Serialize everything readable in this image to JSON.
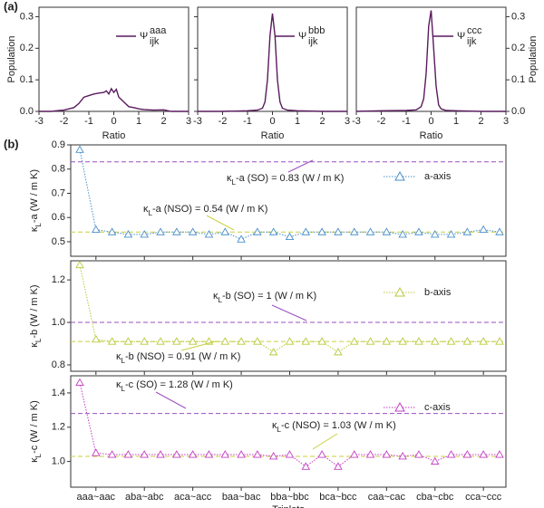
{
  "panel_labels": [
    "(a)",
    "(b)"
  ],
  "chart_data": [
    {
      "type": "line",
      "x": [
        -3,
        -2.5,
        -2.3,
        -2,
        -1.8,
        -1.6,
        -1.4,
        -1.2,
        -1,
        -0.8,
        -0.6,
        -0.4,
        -0.3,
        -0.2,
        -0.1,
        0,
        0.1,
        0.2,
        0.4,
        0.6,
        0.8,
        1,
        1.2,
        1.4,
        1.6,
        2,
        2.3,
        3
      ],
      "series": [
        {
          "name": {
            "symbol": "Ψ",
            "sup": "aaa",
            "sub": "ijk"
          },
          "color": "#5a1a5e",
          "values": [
            0,
            0,
            0.002,
            0.004,
            0.008,
            0.012,
            0.025,
            0.045,
            0.05,
            0.055,
            0.058,
            0.06,
            0.065,
            0.055,
            0.072,
            0.06,
            0.07,
            0.045,
            0.03,
            0.015,
            0.012,
            0.008,
            0.006,
            0.005,
            0.004,
            0.005,
            0,
            0
          ]
        }
      ],
      "xlim": [
        -3,
        3
      ],
      "xticks": [
        -3,
        -2,
        -1,
        0,
        1,
        2,
        3
      ],
      "xlabel": "Ratio",
      "ylim": [
        0,
        0.33
      ],
      "yticks": [
        {
          "value": 0,
          "label": "0.0"
        },
        0.1,
        0.2,
        0.3
      ],
      "ylabel": "Population",
      "yaxis_side": "left"
    },
    {
      "type": "line",
      "x": [
        -3,
        -2,
        -1,
        -0.6,
        -0.4,
        -0.3,
        -0.2,
        -0.1,
        0,
        0.1,
        0.2,
        0.3,
        0.4,
        0.6,
        1,
        2,
        3
      ],
      "series": [
        {
          "name": {
            "symbol": "Ψ",
            "sup": "bbb",
            "sub": "ijk"
          },
          "color": "#5a1a5e",
          "values": [
            0,
            0,
            0.002,
            0.004,
            0.01,
            0.03,
            0.1,
            0.24,
            0.31,
            0.24,
            0.1,
            0.03,
            0.01,
            0.004,
            0.002,
            0,
            0
          ]
        }
      ],
      "xlim": [
        -3,
        3
      ],
      "xticks": [
        -3,
        -2,
        -1,
        0,
        1,
        2,
        3
      ],
      "xlabel": "Ratio",
      "ylim": [
        0,
        0.33
      ],
      "yticks": [
        0,
        0.1,
        0.2,
        0.3
      ]
    },
    {
      "type": "line",
      "x": [
        -3,
        -2,
        -1,
        -0.6,
        -0.4,
        -0.3,
        -0.2,
        -0.1,
        0,
        0.1,
        0.2,
        0.3,
        0.4,
        0.6,
        1,
        2,
        3
      ],
      "series": [
        {
          "name": {
            "symbol": "Ψ",
            "sup": "ccc",
            "sub": "ijk"
          },
          "color": "#5a1a5e",
          "values": [
            0,
            0.002,
            0.003,
            0.005,
            0.015,
            0.04,
            0.12,
            0.27,
            0.32,
            0.2,
            0.08,
            0.02,
            0.008,
            0.003,
            0.002,
            0,
            0
          ]
        }
      ],
      "xlim": [
        -3,
        3
      ],
      "xticks": [
        -3,
        -2,
        -1,
        0,
        1,
        2,
        3
      ],
      "xlabel": "Ratio",
      "ylim": [
        0,
        0.33
      ],
      "yticks": [
        {
          "value": 0,
          "label": "0.0"
        },
        0.1,
        0.2,
        0.3
      ],
      "ylabel": "Population",
      "yaxis_side": "right"
    },
    {
      "type": "marker-line",
      "series": [
        {
          "name": "a-axis",
          "color": "#4a8fc9",
          "values": [
            0.88,
            0.55,
            0.54,
            0.53,
            0.53,
            0.54,
            0.54,
            0.54,
            0.53,
            0.54,
            0.51,
            0.54,
            0.54,
            0.52,
            0.54,
            0.54,
            0.54,
            0.54,
            0.54,
            0.54,
            0.53,
            0.54,
            0.53,
            0.53,
            0.54,
            0.55,
            0.54
          ]
        }
      ],
      "ylim": [
        0.44,
        0.9
      ],
      "yticks": [
        0.5,
        0.6,
        0.7,
        0.8,
        0.9
      ],
      "yaxis_side": "left",
      "ylabel": {
        "prefix": "κ",
        "sub": "L",
        "text": "-a (W / m K)"
      },
      "hlines": [
        {
          "value": 0.83,
          "color": "#9b4fc0"
        },
        {
          "value": 0.54,
          "color": "#c9cf3c"
        }
      ],
      "annotations": [
        {
          "prefix": "κ",
          "sub": "L",
          "text": "-a (SO) = 0.83 (W / m K)"
        },
        {
          "prefix": "κ",
          "sub": "L",
          "text": "-a (NSO) = 0.54 (W / m K)"
        }
      ]
    },
    {
      "type": "marker-line",
      "series": [
        {
          "name": "b-axis",
          "color": "#b9c93a",
          "values": [
            1.27,
            0.92,
            0.91,
            0.91,
            0.91,
            0.91,
            0.91,
            0.91,
            0.91,
            0.91,
            0.91,
            0.91,
            0.86,
            0.91,
            0.91,
            0.91,
            0.86,
            0.91,
            0.91,
            0.91,
            0.91,
            0.91,
            0.91,
            0.91,
            0.91,
            0.91,
            0.91
          ]
        }
      ],
      "ylim": [
        0.77,
        1.29
      ],
      "yticks": [
        0.8,
        {
          "value": 1,
          "label": "1.0"
        },
        1.2
      ],
      "yaxis_side": "left",
      "ylabel": {
        "prefix": "κ",
        "sub": "L",
        "text": "-b (W / m K)"
      },
      "hlines": [
        {
          "value": 1,
          "color": "#9b4fc0"
        },
        {
          "value": 0.91,
          "color": "#c9cf3c"
        }
      ],
      "annotations": [
        {
          "prefix": "κ",
          "sub": "L",
          "text": "-b (SO) = 1 (W / m K)"
        },
        {
          "prefix": "κ",
          "sub": "L",
          "text": "-b (NSO) = 0.91 (W / m K)"
        }
      ]
    },
    {
      "type": "marker-line",
      "categories": [
        null,
        "aaa~aac",
        null,
        null,
        "aba~abc",
        null,
        null,
        "aca~acc",
        null,
        null,
        "baa~bac",
        null,
        null,
        "bba~bbc",
        null,
        null,
        "bca~bcc",
        null,
        null,
        "caa~cac",
        null,
        null,
        "cba~cbc",
        null,
        null,
        "cca~ccc",
        null
      ],
      "xlabel": "Triplets",
      "series": [
        {
          "name": "c-axis",
          "color": "#c43cc4",
          "values": [
            1.46,
            1.05,
            1.04,
            1.04,
            1.04,
            1.04,
            1.04,
            1.04,
            1.04,
            1.04,
            1.04,
            1.04,
            1.03,
            1.04,
            0.97,
            1.04,
            0.97,
            1.04,
            1.04,
            1.04,
            1.03,
            1.04,
            1.0,
            1.04,
            1.04,
            1.04,
            1.04
          ]
        }
      ],
      "ylim": [
        0.85,
        1.5
      ],
      "yticks": [
        {
          "value": 1,
          "label": "1.0"
        },
        1.2,
        1.4
      ],
      "yaxis_side": "left",
      "ylabel": {
        "prefix": "κ",
        "sub": "L",
        "text": "-c (W / m K)"
      },
      "hlines": [
        {
          "value": 1.28,
          "color": "#9b4fc0"
        },
        {
          "value": 1.03,
          "color": "#c9cf3c"
        }
      ],
      "annotations": [
        {
          "prefix": "κ",
          "sub": "L",
          "text": "-c (SO) = 1.28 (W / m K)"
        },
        {
          "prefix": "κ",
          "sub": "L",
          "text": "-c (NSO) = 1.03 (W / m K)"
        }
      ]
    }
  ]
}
